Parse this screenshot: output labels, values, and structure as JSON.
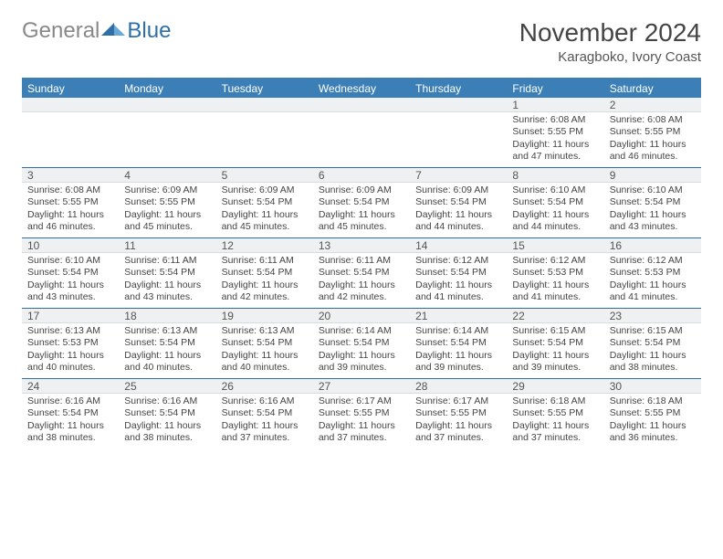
{
  "logo": {
    "part1": "General",
    "part2": "Blue"
  },
  "title": "November 2024",
  "subtitle": "Karagboko, Ivory Coast",
  "colors": {
    "header_bar": "#3b7fb6",
    "week_divider": "#2f6fa8",
    "daynum_bg": "#eef0f1",
    "daynum_border": "#d9dcde",
    "text": "#444444"
  },
  "dow": [
    "Sunday",
    "Monday",
    "Tuesday",
    "Wednesday",
    "Thursday",
    "Friday",
    "Saturday"
  ],
  "weeks": [
    [
      {
        "n": "",
        "sr": "",
        "ss": "",
        "dl": ""
      },
      {
        "n": "",
        "sr": "",
        "ss": "",
        "dl": ""
      },
      {
        "n": "",
        "sr": "",
        "ss": "",
        "dl": ""
      },
      {
        "n": "",
        "sr": "",
        "ss": "",
        "dl": ""
      },
      {
        "n": "",
        "sr": "",
        "ss": "",
        "dl": ""
      },
      {
        "n": "1",
        "sr": "Sunrise: 6:08 AM",
        "ss": "Sunset: 5:55 PM",
        "dl": "Daylight: 11 hours and 47 minutes."
      },
      {
        "n": "2",
        "sr": "Sunrise: 6:08 AM",
        "ss": "Sunset: 5:55 PM",
        "dl": "Daylight: 11 hours and 46 minutes."
      }
    ],
    [
      {
        "n": "3",
        "sr": "Sunrise: 6:08 AM",
        "ss": "Sunset: 5:55 PM",
        "dl": "Daylight: 11 hours and 46 minutes."
      },
      {
        "n": "4",
        "sr": "Sunrise: 6:09 AM",
        "ss": "Sunset: 5:55 PM",
        "dl": "Daylight: 11 hours and 45 minutes."
      },
      {
        "n": "5",
        "sr": "Sunrise: 6:09 AM",
        "ss": "Sunset: 5:54 PM",
        "dl": "Daylight: 11 hours and 45 minutes."
      },
      {
        "n": "6",
        "sr": "Sunrise: 6:09 AM",
        "ss": "Sunset: 5:54 PM",
        "dl": "Daylight: 11 hours and 45 minutes."
      },
      {
        "n": "7",
        "sr": "Sunrise: 6:09 AM",
        "ss": "Sunset: 5:54 PM",
        "dl": "Daylight: 11 hours and 44 minutes."
      },
      {
        "n": "8",
        "sr": "Sunrise: 6:10 AM",
        "ss": "Sunset: 5:54 PM",
        "dl": "Daylight: 11 hours and 44 minutes."
      },
      {
        "n": "9",
        "sr": "Sunrise: 6:10 AM",
        "ss": "Sunset: 5:54 PM",
        "dl": "Daylight: 11 hours and 43 minutes."
      }
    ],
    [
      {
        "n": "10",
        "sr": "Sunrise: 6:10 AM",
        "ss": "Sunset: 5:54 PM",
        "dl": "Daylight: 11 hours and 43 minutes."
      },
      {
        "n": "11",
        "sr": "Sunrise: 6:11 AM",
        "ss": "Sunset: 5:54 PM",
        "dl": "Daylight: 11 hours and 43 minutes."
      },
      {
        "n": "12",
        "sr": "Sunrise: 6:11 AM",
        "ss": "Sunset: 5:54 PM",
        "dl": "Daylight: 11 hours and 42 minutes."
      },
      {
        "n": "13",
        "sr": "Sunrise: 6:11 AM",
        "ss": "Sunset: 5:54 PM",
        "dl": "Daylight: 11 hours and 42 minutes."
      },
      {
        "n": "14",
        "sr": "Sunrise: 6:12 AM",
        "ss": "Sunset: 5:54 PM",
        "dl": "Daylight: 11 hours and 41 minutes."
      },
      {
        "n": "15",
        "sr": "Sunrise: 6:12 AM",
        "ss": "Sunset: 5:53 PM",
        "dl": "Daylight: 11 hours and 41 minutes."
      },
      {
        "n": "16",
        "sr": "Sunrise: 6:12 AM",
        "ss": "Sunset: 5:53 PM",
        "dl": "Daylight: 11 hours and 41 minutes."
      }
    ],
    [
      {
        "n": "17",
        "sr": "Sunrise: 6:13 AM",
        "ss": "Sunset: 5:53 PM",
        "dl": "Daylight: 11 hours and 40 minutes."
      },
      {
        "n": "18",
        "sr": "Sunrise: 6:13 AM",
        "ss": "Sunset: 5:54 PM",
        "dl": "Daylight: 11 hours and 40 minutes."
      },
      {
        "n": "19",
        "sr": "Sunrise: 6:13 AM",
        "ss": "Sunset: 5:54 PM",
        "dl": "Daylight: 11 hours and 40 minutes."
      },
      {
        "n": "20",
        "sr": "Sunrise: 6:14 AM",
        "ss": "Sunset: 5:54 PM",
        "dl": "Daylight: 11 hours and 39 minutes."
      },
      {
        "n": "21",
        "sr": "Sunrise: 6:14 AM",
        "ss": "Sunset: 5:54 PM",
        "dl": "Daylight: 11 hours and 39 minutes."
      },
      {
        "n": "22",
        "sr": "Sunrise: 6:15 AM",
        "ss": "Sunset: 5:54 PM",
        "dl": "Daylight: 11 hours and 39 minutes."
      },
      {
        "n": "23",
        "sr": "Sunrise: 6:15 AM",
        "ss": "Sunset: 5:54 PM",
        "dl": "Daylight: 11 hours and 38 minutes."
      }
    ],
    [
      {
        "n": "24",
        "sr": "Sunrise: 6:16 AM",
        "ss": "Sunset: 5:54 PM",
        "dl": "Daylight: 11 hours and 38 minutes."
      },
      {
        "n": "25",
        "sr": "Sunrise: 6:16 AM",
        "ss": "Sunset: 5:54 PM",
        "dl": "Daylight: 11 hours and 38 minutes."
      },
      {
        "n": "26",
        "sr": "Sunrise: 6:16 AM",
        "ss": "Sunset: 5:54 PM",
        "dl": "Daylight: 11 hours and 37 minutes."
      },
      {
        "n": "27",
        "sr": "Sunrise: 6:17 AM",
        "ss": "Sunset: 5:55 PM",
        "dl": "Daylight: 11 hours and 37 minutes."
      },
      {
        "n": "28",
        "sr": "Sunrise: 6:17 AM",
        "ss": "Sunset: 5:55 PM",
        "dl": "Daylight: 11 hours and 37 minutes."
      },
      {
        "n": "29",
        "sr": "Sunrise: 6:18 AM",
        "ss": "Sunset: 5:55 PM",
        "dl": "Daylight: 11 hours and 37 minutes."
      },
      {
        "n": "30",
        "sr": "Sunrise: 6:18 AM",
        "ss": "Sunset: 5:55 PM",
        "dl": "Daylight: 11 hours and 36 minutes."
      }
    ]
  ]
}
